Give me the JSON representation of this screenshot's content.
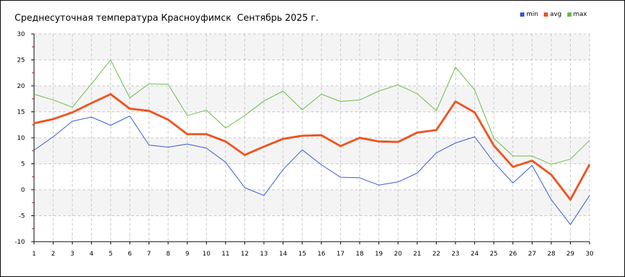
{
  "chart_data": {
    "type": "line",
    "title": "Среднесуточная температура Красноуфимск  Сентябрь 2025 г.",
    "xlabel": "",
    "ylabel": "",
    "x": [
      1,
      2,
      3,
      4,
      5,
      6,
      7,
      8,
      9,
      10,
      11,
      12,
      13,
      14,
      15,
      16,
      17,
      18,
      19,
      20,
      21,
      22,
      23,
      24,
      25,
      26,
      27,
      28,
      29,
      30
    ],
    "ylim": [
      -10,
      30
    ],
    "yticks": [
      -10,
      -5,
      0,
      5,
      10,
      15,
      20,
      25,
      30
    ],
    "grid": true,
    "legend_position": "top-right",
    "series": [
      {
        "name": "min",
        "color": "#3355dd",
        "values": [
          7.6,
          10.2,
          13.2,
          14.0,
          12.4,
          14.2,
          8.6,
          8.2,
          8.8,
          8.0,
          5.3,
          0.4,
          -1.1,
          3.9,
          7.7,
          4.8,
          2.4,
          2.3,
          0.9,
          1.5,
          3.2,
          7.1,
          9.0,
          10.2,
          5.3,
          1.3,
          4.7,
          -1.9,
          -6.7,
          -1.1
        ]
      },
      {
        "name": "avg",
        "color": "#ee5522",
        "values": [
          12.8,
          13.6,
          14.9,
          16.7,
          18.4,
          15.6,
          15.2,
          13.5,
          10.7,
          10.7,
          9.3,
          6.7,
          8.3,
          9.8,
          10.4,
          10.5,
          8.4,
          10.0,
          9.3,
          9.2,
          11.0,
          11.5,
          17.0,
          14.9,
          8.5,
          4.4,
          5.6,
          2.9,
          -1.9,
          4.9
        ]
      },
      {
        "name": "max",
        "color": "#66bb44",
        "values": [
          18.4,
          17.3,
          15.9,
          20.4,
          25.0,
          17.7,
          20.4,
          20.3,
          14.3,
          15.3,
          11.9,
          14.3,
          17.1,
          19.0,
          15.4,
          18.4,
          17.0,
          17.3,
          19.0,
          20.2,
          18.5,
          15.2,
          23.6,
          19.2,
          9.9,
          6.5,
          6.5,
          4.9,
          5.9,
          9.5
        ]
      }
    ]
  }
}
